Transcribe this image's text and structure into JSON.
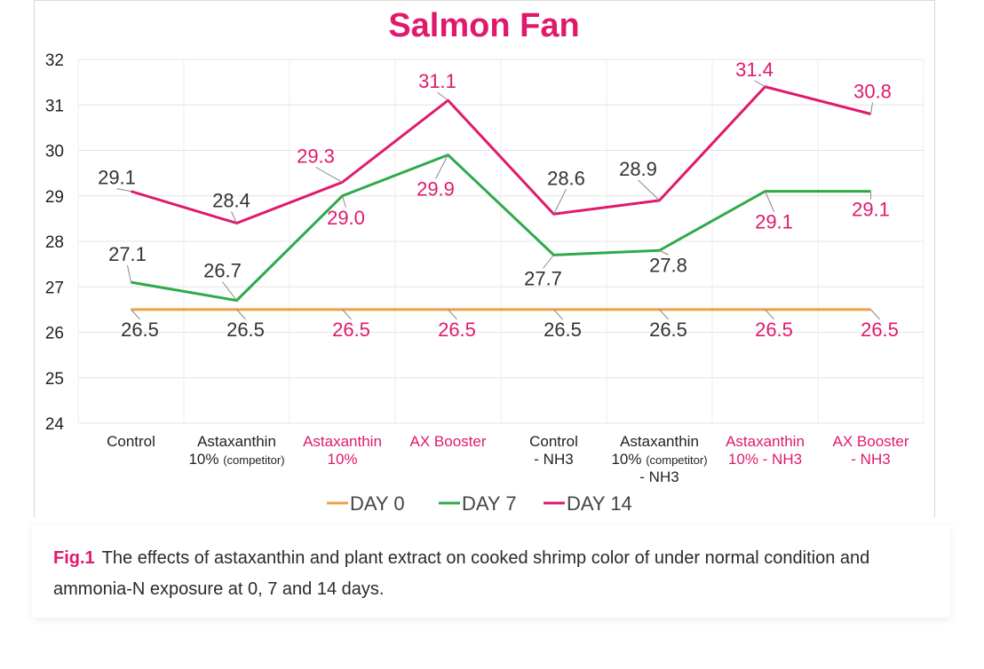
{
  "chart_data": {
    "type": "line",
    "title": "Salmon Fan",
    "categories": [
      [
        "Control"
      ],
      [
        "Astaxanthin",
        "10% (competitor)"
      ],
      [
        "Astaxanthin",
        "10%"
      ],
      [
        "AX Booster"
      ],
      [
        "Control",
        "- NH3"
      ],
      [
        "Astaxanthin",
        "10% (competitor)",
        "- NH3"
      ],
      [
        "Astaxanthin",
        "10% - NH3"
      ],
      [
        "AX Booster",
        "- NH3"
      ]
    ],
    "category_label_colors": [
      "#222222",
      "#222222",
      "#e0196e",
      "#e0196e",
      "#222222",
      "#222222",
      "#e0196e",
      "#e0196e"
    ],
    "series": [
      {
        "name": "DAY 0",
        "color": "#f0a040",
        "values": [
          26.5,
          26.5,
          26.5,
          26.5,
          26.5,
          26.5,
          26.5,
          26.5
        ]
      },
      {
        "name": "DAY 7",
        "color": "#2eaa4a",
        "values": [
          27.1,
          26.7,
          29.0,
          29.9,
          27.7,
          27.8,
          29.1,
          29.1
        ]
      },
      {
        "name": "DAY 14",
        "color": "#e0196e",
        "values": [
          29.1,
          28.4,
          29.3,
          31.1,
          28.6,
          28.9,
          31.4,
          30.8
        ]
      }
    ],
    "ylim": [
      24,
      32
    ],
    "yticks": [
      24,
      25,
      26,
      27,
      28,
      29,
      30,
      31,
      32
    ],
    "grid": true,
    "legend_position": "bottom"
  },
  "caption": {
    "label": "Fig.1",
    "text": "The effects of astaxanthin and plant extract on cooked shrimp color of under normal condition and ammonia-N exposure at 0, 7 and 14 days."
  }
}
